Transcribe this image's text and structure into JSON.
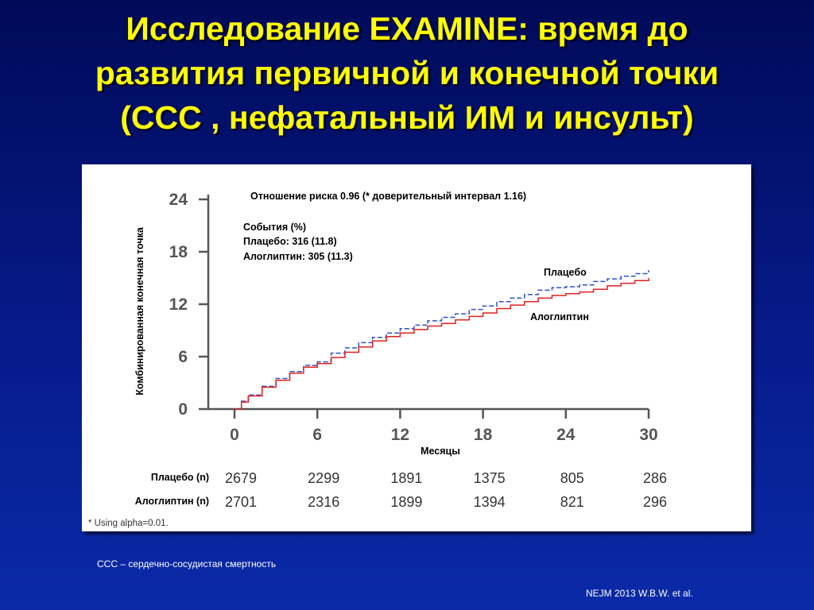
{
  "slide": {
    "title_lines": [
      "Исследование EXAMINE: время до",
      "развития первичной и конечной точки",
      "(ССС , нефатальный ИМ и инсульт)"
    ],
    "footnote": "ССС – сердечно-сосудистая смертность",
    "source": "NEJM 2013 W.B.W. et al.",
    "colors": {
      "background": "#061a8a",
      "title": "#ffff00",
      "placebo": "#3050c8",
      "alogliptin": "#e02020"
    }
  },
  "chart_data": {
    "type": "line",
    "ylabel": "Комбинированная конечная точка",
    "xlabel": "Месяцы",
    "xlim": [
      0,
      30
    ],
    "ylim": [
      0,
      24
    ],
    "x_ticks": [
      0,
      6,
      12,
      18,
      24,
      30
    ],
    "y_ticks": [
      0,
      6,
      12,
      18,
      24
    ],
    "annotations": {
      "hazard_ratio": "Отношение риска 0.96 (* доверительный интервал 1.16)",
      "events_header": "События (%)",
      "events_placebo": "Плацебо: 316 (11.8)",
      "events_alogliptin": "Алоглиптин: 305 (11.3)"
    },
    "series": [
      {
        "name": "Плацебо",
        "style": "dashed",
        "color": "#3050c8",
        "x": [
          0,
          0.5,
          1,
          2,
          3,
          4,
          5,
          6,
          7,
          8,
          9,
          10,
          11,
          12,
          13,
          14,
          15,
          16,
          17,
          18,
          19,
          20,
          21,
          22,
          23,
          24,
          25,
          26,
          27,
          28,
          29,
          30
        ],
        "y": [
          0,
          0.9,
          1.6,
          2.6,
          3.5,
          4.3,
          5.0,
          5.4,
          6.4,
          7.0,
          7.6,
          8.2,
          8.7,
          9.2,
          9.6,
          10.1,
          10.5,
          10.9,
          11.4,
          11.8,
          12.3,
          12.7,
          13.1,
          13.6,
          13.9,
          14.0,
          14.2,
          14.6,
          14.9,
          15.2,
          15.5,
          15.9
        ]
      },
      {
        "name": "Алоглиптин",
        "style": "solid",
        "color": "#e02020",
        "x": [
          0,
          0.5,
          1,
          2,
          3,
          4,
          5,
          6,
          7,
          8,
          9,
          10,
          11,
          12,
          13,
          14,
          15,
          16,
          17,
          18,
          19,
          20,
          21,
          22,
          23,
          24,
          25,
          26,
          27,
          28,
          29,
          30
        ],
        "y": [
          0,
          0.8,
          1.5,
          2.5,
          3.3,
          4.1,
          4.8,
          5.2,
          5.9,
          6.5,
          7.1,
          7.8,
          8.3,
          8.7,
          9.1,
          9.5,
          9.8,
          10.2,
          10.6,
          11.0,
          11.5,
          11.9,
          12.3,
          12.7,
          13.0,
          13.2,
          13.4,
          13.7,
          14.1,
          14.4,
          14.7,
          15.0
        ]
      }
    ],
    "at_risk": {
      "placebo_label": "Плацебо (n)",
      "placebo": [
        "2679",
        "2299",
        "1891",
        "1375",
        "805",
        "286"
      ],
      "alogliptin_label": "Алоглиптин (n)",
      "alogliptin": [
        "2701",
        "2316",
        "1899",
        "1394",
        "821",
        "296"
      ]
    },
    "note": "* Using alpha=0.01."
  }
}
